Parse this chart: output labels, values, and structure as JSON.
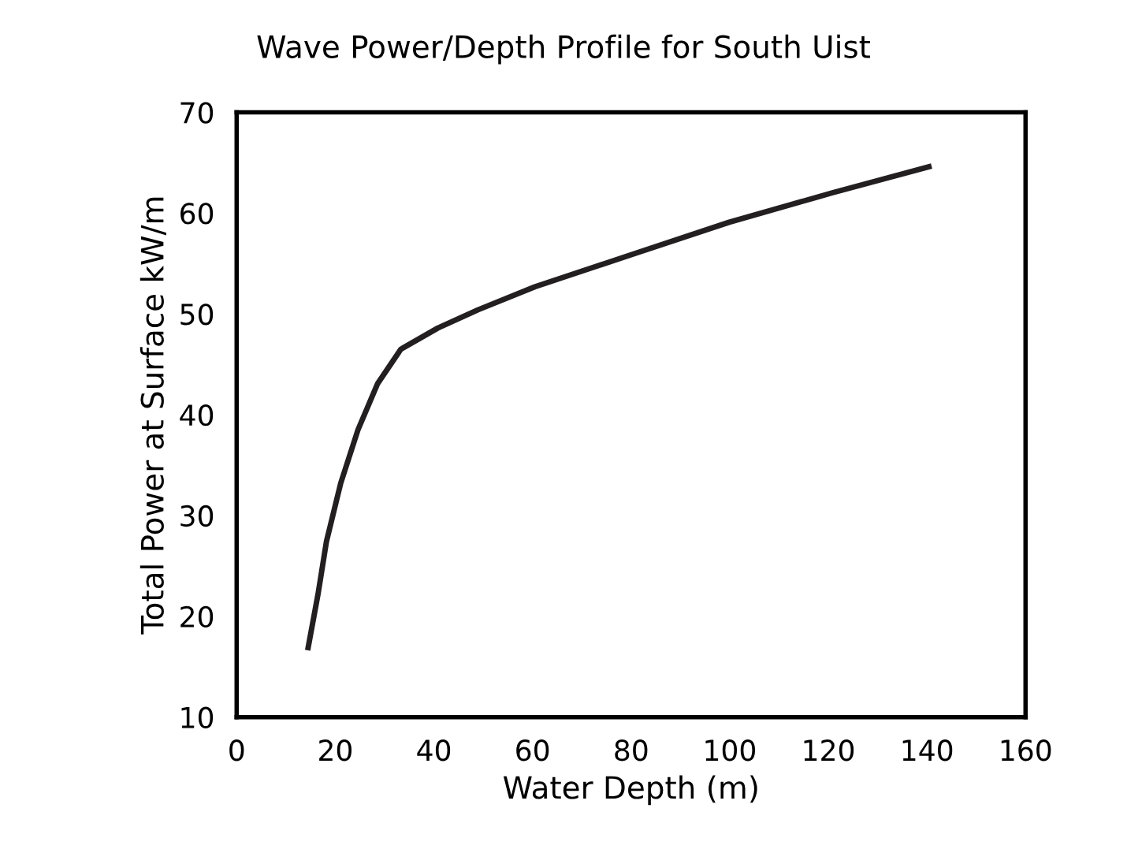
{
  "chart_data": {
    "type": "line",
    "title": "Wave Power/Depth Profile for South Uist",
    "xlabel": "Water Depth (m)",
    "ylabel": "Total Power at Surface kW/m",
    "series": [
      {
        "color": "#231f20",
        "x": [
          14.5,
          16.5,
          18.2,
          21.1,
          24.6,
          28.6,
          33.3,
          40.8,
          48.9,
          60.5,
          80.2,
          99.9,
          120.7,
          140.4
        ],
        "values": [
          16.9,
          22.2,
          27.4,
          33.2,
          38.5,
          43.1,
          46.5,
          48.6,
          50.4,
          52.7,
          55.9,
          59.1,
          62.0,
          64.6
        ]
      }
    ],
    "xlim": [
      0,
      160
    ],
    "xticks": [
      0,
      20,
      40,
      60,
      80,
      100,
      120,
      140,
      160
    ],
    "ylim": [
      10,
      70
    ],
    "yticks": [
      10,
      20,
      30,
      40,
      50,
      60,
      70
    ],
    "grid": false,
    "legend": false,
    "marker": "none",
    "line_style": "solid"
  }
}
